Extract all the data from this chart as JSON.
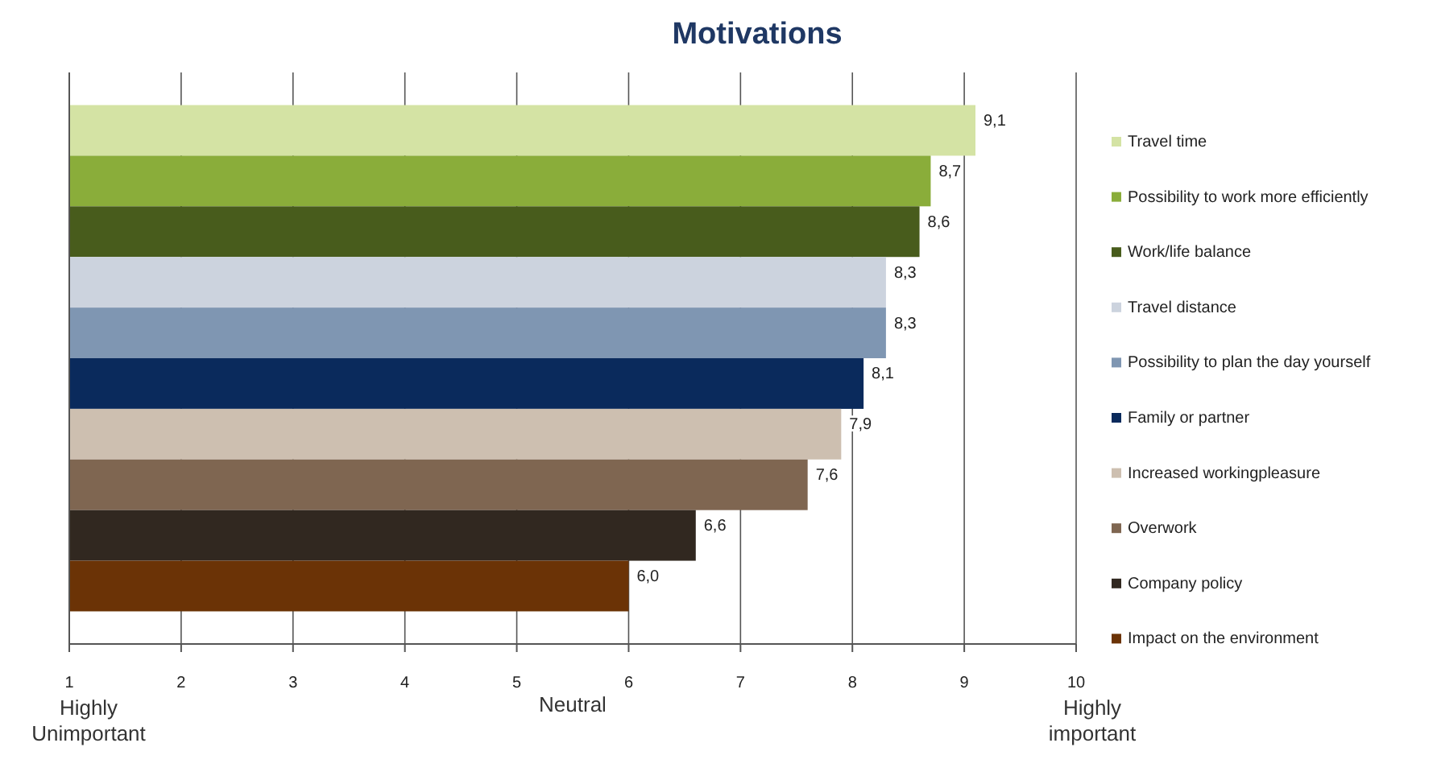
{
  "chart_data": {
    "type": "bar",
    "orientation": "horizontal",
    "title": "Motivations",
    "xlabel": "Neutral",
    "annotations": [
      "Highly Unimportant",
      "Highly important"
    ],
    "categories": [
      null
    ],
    "xlim": [
      1,
      10
    ],
    "xticks": [
      1,
      2,
      3,
      4,
      5,
      6,
      7,
      8,
      9,
      10
    ],
    "grid": "x",
    "legend": "right",
    "series": [
      {
        "name": "Travel time",
        "color": "#d4e3a4",
        "values": [
          9.1
        ],
        "value_labels": [
          "9,1"
        ]
      },
      {
        "name": "Possibility to work more efficiently",
        "color": "#8aad3a",
        "values": [
          8.7
        ],
        "value_labels": [
          "8,7"
        ]
      },
      {
        "name": "Work/life balance",
        "color": "#485c1c",
        "values": [
          8.6
        ],
        "value_labels": [
          "8,6"
        ]
      },
      {
        "name": "Travel distance",
        "color": "#ccd3de",
        "values": [
          8.3
        ],
        "value_labels": [
          "8,3"
        ]
      },
      {
        "name": "Possibility to plan the day yourself",
        "color": "#7f96b2",
        "values": [
          8.3
        ],
        "value_labels": [
          "8,3"
        ]
      },
      {
        "name": "Family or partner",
        "color": "#0a2a5c",
        "values": [
          8.1
        ],
        "value_labels": [
          "8,1"
        ]
      },
      {
        "name": "Increased workingpleasure",
        "color": "#cdbfb0",
        "values": [
          7.9
        ],
        "value_labels": [
          "7,9"
        ]
      },
      {
        "name": "Overwork",
        "color": "#7f6651",
        "values": [
          7.6
        ],
        "value_labels": [
          "7,6"
        ]
      },
      {
        "name": "Company policy",
        "color": "#312820",
        "values": [
          6.6
        ],
        "value_labels": [
          "6,6"
        ]
      },
      {
        "name": "Impact on the environment",
        "color": "#6b3306",
        "values": [
          6.0
        ],
        "value_labels": [
          "6,0"
        ]
      }
    ]
  }
}
